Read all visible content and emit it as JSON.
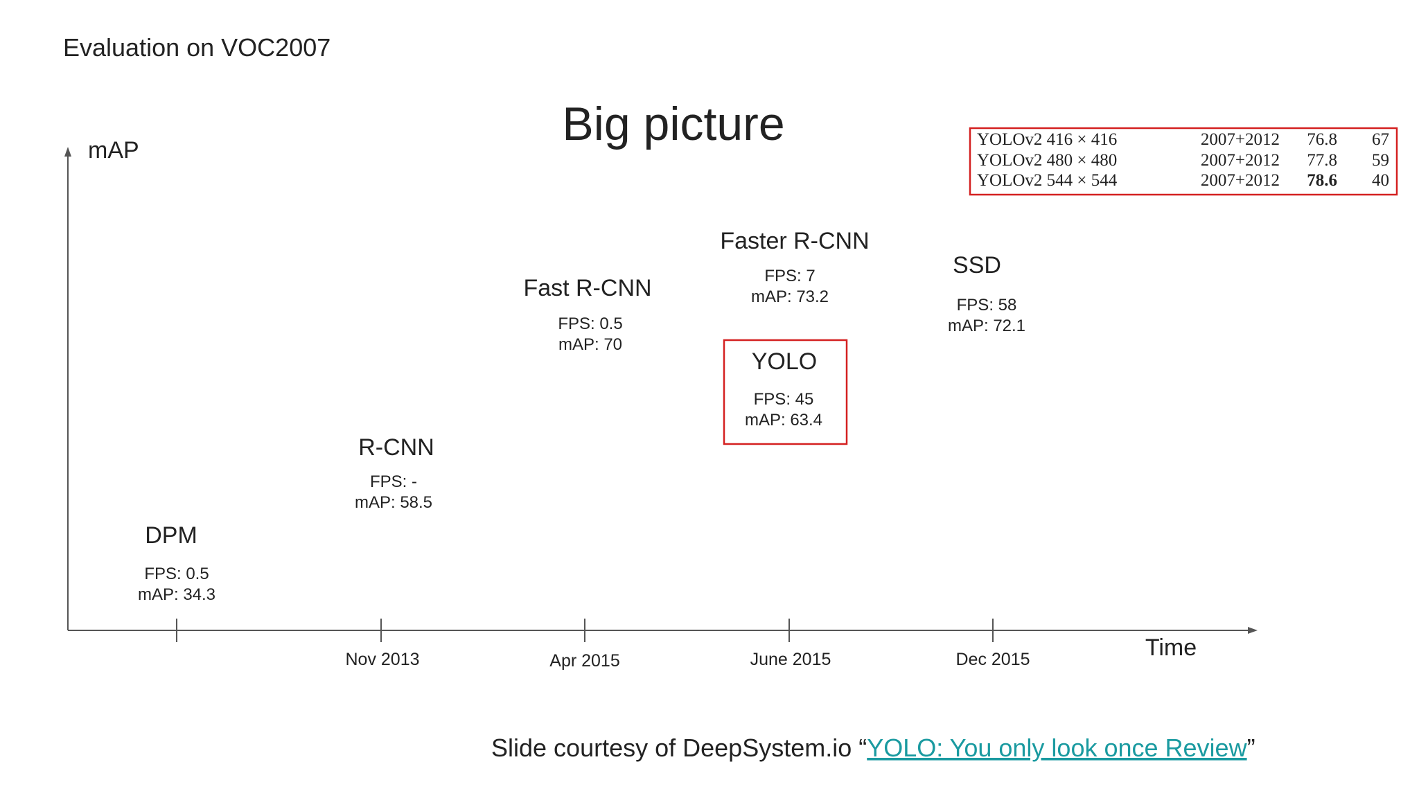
{
  "header": {
    "title": "Evaluation on VOC2007"
  },
  "slide": {
    "title": "Big picture"
  },
  "axes": {
    "y_label": "mAP",
    "x_label": "Time",
    "x_ticks": [
      "Nov 2013",
      "Apr 2015",
      "June 2015",
      "Dec 2015"
    ]
  },
  "methods": [
    {
      "name": "DPM",
      "fps": "FPS: 0.5",
      "map": "mAP: 34.3"
    },
    {
      "name": "R-CNN",
      "fps": "FPS: -",
      "map": "mAP: 58.5"
    },
    {
      "name": "Fast R-CNN",
      "fps": "FPS: 0.5",
      "map": "mAP: 70"
    },
    {
      "name": "Faster R-CNN",
      "fps": "FPS: 7",
      "map": "mAP: 73.2"
    },
    {
      "name": "YOLO",
      "fps": "FPS: 45",
      "map": "mAP: 63.4"
    },
    {
      "name": "SSD",
      "fps": "FPS: 58",
      "map": "mAP: 72.1"
    }
  ],
  "table": {
    "rows": [
      [
        "YOLOv2 416 × 416",
        "2007+2012",
        "76.8",
        "67"
      ],
      [
        "YOLOv2 480 × 480",
        "2007+2012",
        "77.8",
        "59"
      ],
      [
        "YOLOv2 544 × 544",
        "2007+2012",
        "78.6",
        "40"
      ]
    ]
  },
  "footer": {
    "text": "Slide courtesy of DeepSystem.io “",
    "link": "YOLO: You only look once Review",
    "close": "”"
  }
}
